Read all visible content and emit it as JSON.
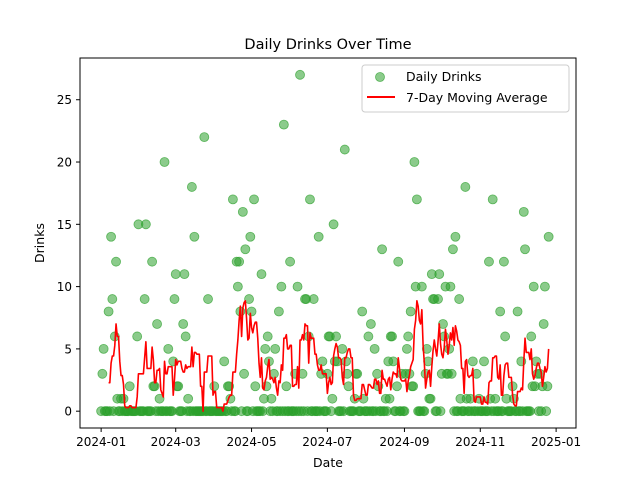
{
  "chart_data": {
    "type": "scatter",
    "title": "Daily Drinks Over Time",
    "xlabel": "Date",
    "ylabel": "Drinks",
    "grid": false,
    "legend_position": "top-right",
    "x_start": "2024-01-01",
    "x_end": "2024-12-31",
    "xlim": [
      "2023-12-15",
      "2025-01-17"
    ],
    "ylim": [
      -1.35,
      28.35
    ],
    "x_ticks": [
      "2024-01-01",
      "2024-03-01",
      "2024-05-01",
      "2024-07-01",
      "2024-09-01",
      "2024-11-01",
      "2025-01-01"
    ],
    "x_tick_labels": [
      "2024-01",
      "2024-03",
      "2024-05",
      "2024-07",
      "2024-09",
      "2024-11",
      "2025-01"
    ],
    "y_ticks": [
      0,
      5,
      10,
      15,
      20,
      25
    ],
    "series": [
      {
        "name": "Daily Drinks",
        "kind": "scatter",
        "color": "#2ca02c",
        "values": [
          0,
          3,
          5,
          0,
          0,
          0,
          8,
          0,
          14,
          9,
          0,
          6,
          12,
          1,
          0,
          0,
          1,
          0,
          1,
          0,
          0,
          0,
          0,
          2,
          0,
          0,
          0,
          0,
          0,
          6,
          15,
          0,
          0,
          0,
          0,
          9,
          15,
          0,
          0,
          0,
          0,
          12,
          2,
          2,
          0,
          7,
          0,
          1,
          0,
          0,
          0,
          20,
          0,
          0,
          5,
          0,
          0,
          0,
          4,
          9,
          11,
          2,
          2,
          0,
          0,
          0,
          7,
          11,
          6,
          0,
          1,
          0,
          0,
          18,
          0,
          14,
          0,
          0,
          0,
          0,
          0,
          0,
          0,
          22,
          0,
          0,
          9,
          0,
          0,
          0,
          0,
          2,
          0,
          0,
          0,
          0,
          0,
          0,
          0,
          4,
          0,
          0,
          2,
          2,
          1,
          0,
          17,
          0,
          0,
          12,
          10,
          12,
          8,
          0,
          16,
          3,
          13,
          0,
          0,
          9,
          14,
          8,
          0,
          17,
          2,
          0,
          0,
          0,
          0,
          11,
          0,
          1,
          5,
          2,
          6,
          4,
          0,
          1,
          0,
          3,
          5,
          0,
          0,
          8,
          0,
          10,
          0,
          23,
          0,
          2,
          0,
          0,
          12,
          0,
          0,
          0,
          3,
          0,
          10,
          0,
          27,
          0,
          3,
          0,
          9,
          9,
          0,
          6,
          17,
          0,
          0,
          9,
          0,
          0,
          0,
          14,
          0,
          3,
          4,
          0,
          0,
          0,
          3,
          6,
          6,
          0,
          1,
          15,
          4,
          6,
          4,
          0,
          0,
          0,
          5,
          0,
          21,
          4,
          3,
          2,
          0,
          0,
          0,
          0,
          1,
          3,
          3,
          0,
          0,
          0,
          8,
          1,
          0,
          0,
          0,
          6,
          0,
          7,
          0,
          0,
          5,
          0,
          3,
          2,
          0,
          0,
          13,
          0,
          0,
          1,
          0,
          4,
          1,
          6,
          6,
          4,
          0,
          0,
          2,
          12,
          0,
          0,
          3,
          0,
          0,
          3,
          5,
          6,
          3,
          8,
          2,
          2,
          20,
          10,
          17,
          0,
          0,
          0,
          10,
          0,
          0,
          3,
          5,
          4,
          1,
          1,
          11,
          9,
          9,
          0,
          0,
          9,
          11,
          0,
          3,
          7,
          6,
          10,
          3,
          3,
          5,
          10,
          3,
          13,
          0,
          14,
          0,
          0,
          9,
          1,
          0,
          0,
          0,
          18,
          1,
          0,
          0,
          1,
          0,
          4,
          0,
          0,
          3,
          0,
          1,
          0,
          0,
          0,
          4,
          0,
          0,
          0,
          12,
          1,
          0,
          17,
          0,
          1,
          0,
          0,
          0,
          8,
          0,
          0,
          12,
          6,
          1,
          0,
          0,
          0,
          0,
          2,
          1,
          0,
          0,
          8,
          0,
          0,
          4,
          0,
          16,
          13,
          0,
          0,
          0,
          0,
          6,
          2,
          10,
          2,
          4,
          3,
          0,
          3,
          0,
          2,
          7,
          10,
          0,
          2,
          14
        ]
      },
      {
        "name": "7-Day Moving Average",
        "kind": "line",
        "color": "#ff0000",
        "window": 7
      }
    ]
  }
}
